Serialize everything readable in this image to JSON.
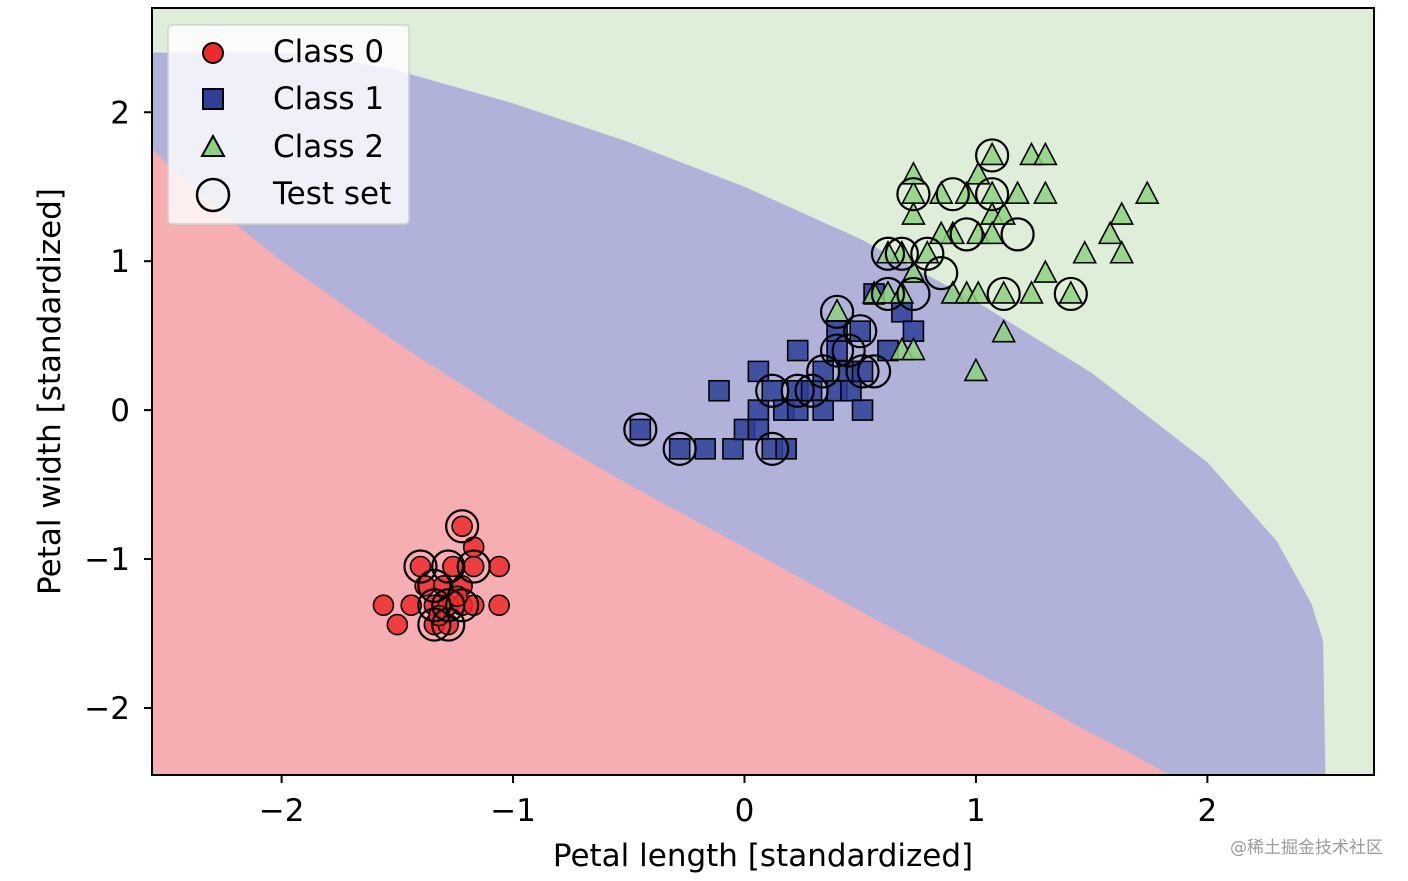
{
  "chart_data": {
    "type": "scatter",
    "title": "",
    "xlabel": "Petal length [standardized]",
    "ylabel": "Petal width [standardized]",
    "xlim": [
      -2.56,
      2.72
    ],
    "ylim": [
      -2.45,
      2.7
    ],
    "xticks": [
      -2,
      -1,
      0,
      1,
      2
    ],
    "yticks": [
      -2,
      -1,
      0,
      1,
      2
    ],
    "xtick_labels": [
      "−2",
      "−1",
      "0",
      "1",
      "2"
    ],
    "ytick_labels": [
      "−2",
      "−1",
      "0",
      "1",
      "2"
    ],
    "grid": false,
    "legend_position": "upper-left",
    "decision_regions": {
      "colors": {
        "class0": "#f6aeb2",
        "class1": "#b0b2da",
        "class2": "#dfeed9"
      },
      "boundary_0_1": [
        [
          -2.56,
          1.75
        ],
        [
          -2.28,
          1.35
        ],
        [
          -2.0,
          1.0
        ],
        [
          -1.5,
          0.45
        ],
        [
          -1.0,
          -0.05
        ],
        [
          -0.5,
          -0.5
        ],
        [
          0.0,
          -0.92
        ],
        [
          0.5,
          -1.35
        ],
        [
          0.8,
          -1.6
        ],
        [
          1.0,
          -1.76
        ],
        [
          1.24,
          -1.95
        ],
        [
          1.45,
          -2.13
        ],
        [
          1.65,
          -2.29
        ],
        [
          1.84,
          -2.45
        ]
      ],
      "boundary_1_2": [
        [
          -2.56,
          2.4
        ],
        [
          -2.0,
          2.4
        ],
        [
          -1.8,
          2.37
        ],
        [
          -1.5,
          2.28
        ],
        [
          -1.0,
          2.06
        ],
        [
          -0.5,
          1.8
        ],
        [
          0.0,
          1.5
        ],
        [
          0.5,
          1.15
        ],
        [
          1.0,
          0.73
        ],
        [
          1.5,
          0.25
        ],
        [
          2.0,
          -0.35
        ],
        [
          2.3,
          -0.88
        ],
        [
          2.45,
          -1.3
        ],
        [
          2.5,
          -1.55
        ],
        [
          2.51,
          -2.45
        ]
      ]
    },
    "series": [
      {
        "name": "Class 0",
        "marker": "circle",
        "color": "#ee2a2a",
        "points": [
          [
            -1.56,
            -1.31
          ],
          [
            -1.5,
            -1.44
          ],
          [
            -1.44,
            -1.31
          ],
          [
            -1.4,
            -1.05
          ],
          [
            -1.38,
            -1.18
          ],
          [
            -1.34,
            -1.31
          ],
          [
            -1.34,
            -1.44
          ],
          [
            -1.3,
            -1.18
          ],
          [
            -1.28,
            -1.31
          ],
          [
            -1.28,
            -1.44
          ],
          [
            -1.26,
            -1.05
          ],
          [
            -1.22,
            -0.78
          ],
          [
            -1.22,
            -1.18
          ],
          [
            -1.22,
            -1.31
          ],
          [
            -1.17,
            -0.92
          ],
          [
            -1.17,
            -1.05
          ],
          [
            -1.17,
            -1.31
          ],
          [
            -1.06,
            -1.05
          ],
          [
            -1.06,
            -1.31
          ],
          [
            -1.32,
            -1.38
          ],
          [
            -1.24,
            -1.25
          ]
        ]
      },
      {
        "name": "Class 1",
        "marker": "square",
        "color": "#2d3f98",
        "points": [
          [
            -0.45,
            -0.13
          ],
          [
            -0.28,
            -0.26
          ],
          [
            -0.17,
            -0.26
          ],
          [
            -0.11,
            0.13
          ],
          [
            -0.05,
            -0.26
          ],
          [
            0.0,
            -0.13
          ],
          [
            0.06,
            0.0
          ],
          [
            0.06,
            0.26
          ],
          [
            0.06,
            -0.13
          ],
          [
            0.12,
            0.13
          ],
          [
            0.12,
            -0.26
          ],
          [
            0.17,
            0.0
          ],
          [
            0.18,
            -0.26
          ],
          [
            0.23,
            0.13
          ],
          [
            0.23,
            0.4
          ],
          [
            0.23,
            0.0
          ],
          [
            0.29,
            0.13
          ],
          [
            0.34,
            0.26
          ],
          [
            0.34,
            0.0
          ],
          [
            0.4,
            0.13
          ],
          [
            0.4,
            0.4
          ],
          [
            0.4,
            0.53
          ],
          [
            0.45,
            0.26
          ],
          [
            0.46,
            0.13
          ],
          [
            0.5,
            0.53
          ],
          [
            0.51,
            0.26
          ],
          [
            0.51,
            0.0
          ],
          [
            0.56,
            0.78
          ],
          [
            0.62,
            0.4
          ],
          [
            0.68,
            0.66
          ],
          [
            0.73,
            0.53
          ]
        ]
      },
      {
        "name": "Class 2",
        "marker": "triangle",
        "color": "#8dd27c",
        "points": [
          [
            0.4,
            0.66
          ],
          [
            0.56,
            0.78
          ],
          [
            0.62,
            0.78
          ],
          [
            0.68,
            0.78
          ],
          [
            0.68,
            1.05
          ],
          [
            0.68,
            0.4
          ],
          [
            0.73,
            0.4
          ],
          [
            0.73,
            0.92
          ],
          [
            0.73,
            1.31
          ],
          [
            0.73,
            1.45
          ],
          [
            0.73,
            1.58
          ],
          [
            0.79,
            1.05
          ],
          [
            0.85,
            1.45
          ],
          [
            0.9,
            1.18
          ],
          [
            0.9,
            0.78
          ],
          [
            0.96,
            0.78
          ],
          [
            0.96,
            1.45
          ],
          [
            1.0,
            0.26
          ],
          [
            1.01,
            1.58
          ],
          [
            1.01,
            1.18
          ],
          [
            1.01,
            0.78
          ],
          [
            1.07,
            1.71
          ],
          [
            1.07,
            1.45
          ],
          [
            1.07,
            1.31
          ],
          [
            1.07,
            1.18
          ],
          [
            1.12,
            1.31
          ],
          [
            1.12,
            0.52
          ],
          [
            1.12,
            0.78
          ],
          [
            1.18,
            1.45
          ],
          [
            1.24,
            0.78
          ],
          [
            1.24,
            1.71
          ],
          [
            1.3,
            1.71
          ],
          [
            1.3,
            1.45
          ],
          [
            1.3,
            0.92
          ],
          [
            1.41,
            0.78
          ],
          [
            1.47,
            1.05
          ],
          [
            1.58,
            1.18
          ],
          [
            1.63,
            1.31
          ],
          [
            1.63,
            1.05
          ],
          [
            1.74,
            1.45
          ],
          [
            0.62,
            1.05
          ],
          [
            0.85,
            1.18
          ]
        ]
      },
      {
        "name": "Test set",
        "marker": "open-circle",
        "color": "#000000",
        "points": [
          [
            -1.4,
            -1.05
          ],
          [
            -1.22,
            -0.78
          ],
          [
            -1.28,
            -1.05
          ],
          [
            -1.17,
            -1.05
          ],
          [
            -1.34,
            -1.18
          ],
          [
            -1.34,
            -1.31
          ],
          [
            -1.28,
            -1.31
          ],
          [
            -1.22,
            -1.31
          ],
          [
            -1.34,
            -1.44
          ],
          [
            -1.28,
            -1.44
          ],
          [
            -0.45,
            -0.13
          ],
          [
            -0.28,
            -0.26
          ],
          [
            0.12,
            0.13
          ],
          [
            0.12,
            -0.26
          ],
          [
            0.23,
            0.13
          ],
          [
            0.29,
            0.13
          ],
          [
            0.34,
            0.26
          ],
          [
            0.4,
            0.4
          ],
          [
            0.4,
            0.66
          ],
          [
            0.45,
            0.4
          ],
          [
            0.5,
            0.53
          ],
          [
            0.51,
            0.26
          ],
          [
            0.56,
            0.26
          ],
          [
            0.62,
            1.05
          ],
          [
            0.62,
            0.78
          ],
          [
            0.68,
            1.05
          ],
          [
            0.73,
            0.78
          ],
          [
            0.73,
            1.45
          ],
          [
            0.79,
            1.05
          ],
          [
            0.85,
            0.92
          ],
          [
            0.9,
            1.45
          ],
          [
            0.96,
            1.18
          ],
          [
            1.07,
            1.71
          ],
          [
            1.07,
            1.45
          ],
          [
            1.18,
            1.18
          ],
          [
            1.12,
            0.78
          ],
          [
            1.41,
            0.78
          ]
        ]
      }
    ]
  },
  "legend": {
    "items": [
      {
        "label": "Class 0"
      },
      {
        "label": "Class 1"
      },
      {
        "label": "Class 2"
      },
      {
        "label": "Test set"
      }
    ]
  },
  "watermark": "@稀土掘金技术社区"
}
